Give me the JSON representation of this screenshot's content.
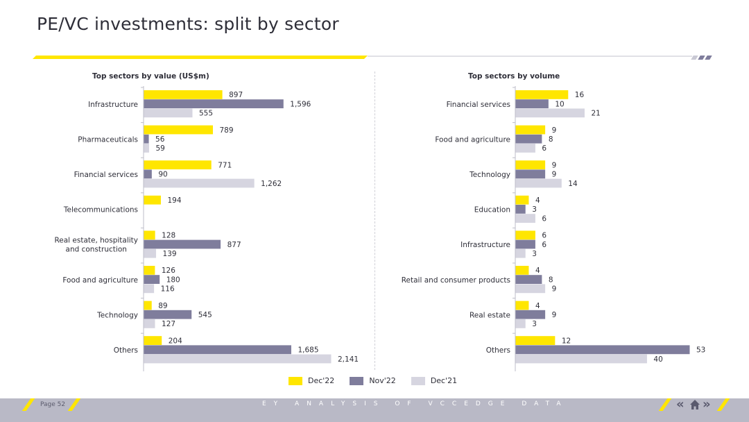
{
  "page": {
    "title": "PE/VC investments: split by sector",
    "page_number": "Page 52",
    "footer_text": "EY ANALYSIS OF VCCEDGE DATA"
  },
  "colors": {
    "dec22": "#ffe600",
    "nov22": "#7f7d9c",
    "dec21": "#d6d5e0"
  },
  "legend": [
    {
      "label": "Dec'22",
      "color": "#ffe600"
    },
    {
      "label": "Nov'22",
      "color": "#7f7d9c"
    },
    {
      "label": "Dec'21",
      "color": "#d6d5e0"
    }
  ],
  "chart_data": [
    {
      "type": "bar",
      "orientation": "horizontal",
      "title": "Top sectors by value (US$m)",
      "categories": [
        "Infrastructure",
        "Pharmaceuticals",
        "Financial services",
        "Telecommunications",
        "Real estate, hospitality and construction",
        "Food and agriculture",
        "Technology",
        "Others"
      ],
      "series": [
        {
          "name": "Dec'22",
          "values": [
            897,
            789,
            771,
            194,
            128,
            126,
            89,
            204
          ],
          "labels": [
            "897",
            "789",
            "771",
            "194",
            "128",
            "126",
            "89",
            "204"
          ]
        },
        {
          "name": "Nov'22",
          "values": [
            1596,
            56,
            90,
            null,
            877,
            180,
            545,
            1685
          ],
          "labels": [
            "1,596",
            "56",
            "90",
            "",
            "877",
            "180",
            "545",
            "1,685"
          ]
        },
        {
          "name": "Dec'21",
          "values": [
            555,
            59,
            1262,
            null,
            139,
            116,
            127,
            2141
          ],
          "labels": [
            "555",
            "59",
            "1,262",
            "",
            "139",
            "116",
            "127",
            "2,141"
          ]
        }
      ],
      "xlim": [
        0,
        2141
      ]
    },
    {
      "type": "bar",
      "orientation": "horizontal",
      "title": "Top sectors by volume",
      "categories": [
        "Financial services",
        "Food and agriculture",
        "Technology",
        "Education",
        "Infrastructure",
        "Retail and consumer products",
        "Real estate",
        "Others"
      ],
      "series": [
        {
          "name": "Dec'22",
          "values": [
            16,
            9,
            9,
            4,
            6,
            4,
            4,
            12
          ],
          "labels": [
            "16",
            "9",
            "9",
            "4",
            "6",
            "4",
            "4",
            "12"
          ]
        },
        {
          "name": "Nov'22",
          "values": [
            10,
            8,
            9,
            3,
            6,
            8,
            9,
            53
          ],
          "labels": [
            "10",
            "8",
            "9",
            "3",
            "6",
            "8",
            "9",
            "53"
          ]
        },
        {
          "name": "Dec'21",
          "values": [
            21,
            6,
            14,
            6,
            3,
            9,
            3,
            40
          ],
          "labels": [
            "21",
            "6",
            "14",
            "6",
            "3",
            "9",
            "3",
            "40"
          ]
        }
      ],
      "xlim": [
        0,
        53
      ]
    }
  ]
}
